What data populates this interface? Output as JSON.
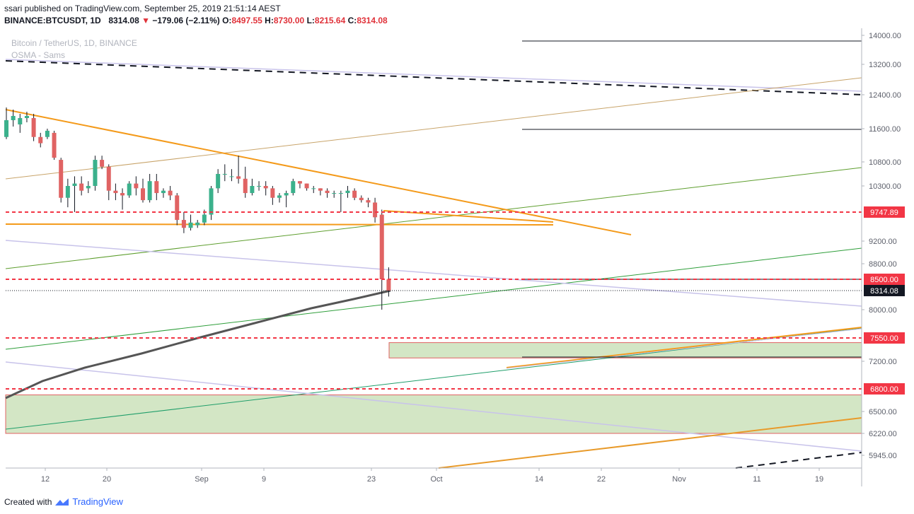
{
  "header": {
    "published_line": "ssari published on TradingView.com, September 25, 2019 21:51:14 AEST",
    "symbol": "BINANCE:BTCUSDT, 1D",
    "last": "8314.08",
    "change": "−179.06 (−2.11%)",
    "o_label": "O:",
    "o_value": "8497.55",
    "h_label": "H:",
    "h_value": "8730.00",
    "l_label": "L:",
    "l_value": "8215.64",
    "c_label": "C:",
    "c_value": "8314.08"
  },
  "watermark": {
    "title": "Bitcoin / TetherUS, 1D, BINANCE",
    "indicator": "OSMA - Sams"
  },
  "footer": {
    "created_with": "Created with",
    "brand": "TradingView"
  },
  "colors": {
    "up": "#3bb18c",
    "down": "#e06363",
    "orange": "#f49a1a",
    "red_dashed": "#f23645",
    "zone_fill": "#d3e6c5",
    "ma": "#555555"
  },
  "chart_data": {
    "type": "candlestick",
    "symbol": "BTCUSDT",
    "timeframe": "1D",
    "y_ticks": [
      "14000.00",
      "13200.00",
      "12400.00",
      "11600.00",
      "10800.00",
      "10300.00",
      "9200.00",
      "8800.00",
      "8000.00",
      "7200.00",
      "6500.00",
      "6220.00",
      "5945.00"
    ],
    "x_ticks": [
      "12",
      "20",
      "Sep",
      "9",
      "23",
      "Oct",
      "14",
      "22",
      "Nov",
      "11",
      "19"
    ],
    "price_labels": [
      {
        "value": 9747.89,
        "text": "9747.89",
        "style": "red"
      },
      {
        "value": 8500.0,
        "text": "8500.00",
        "style": "red"
      },
      {
        "value": 8314.08,
        "text": "8314.08",
        "style": "black"
      },
      {
        "value": 7550.0,
        "text": "7550.00",
        "style": "red"
      },
      {
        "value": 6800.0,
        "text": "6800.00",
        "style": "red"
      }
    ],
    "horizontal_lines": [
      {
        "value": 13850,
        "style": "black"
      },
      {
        "value": 11580,
        "style": "black"
      },
      {
        "value": 9747.89,
        "style": "red-dashed"
      },
      {
        "value": 8500,
        "style": "red-dashed"
      },
      {
        "value": 8314.08,
        "style": "black-dotted"
      },
      {
        "value": 7550,
        "style": "red-dashed"
      },
      {
        "value": 6800,
        "style": "red-dashed"
      },
      {
        "value": 9550,
        "style": "orange"
      }
    ],
    "zones": [
      {
        "from": 7250,
        "to": 7480
      },
      {
        "from": 6220,
        "to": 6720
      }
    ],
    "candles": [
      {
        "o": 11400,
        "h": 12100,
        "l": 11350,
        "c": 11800
      },
      {
        "o": 11800,
        "h": 12050,
        "l": 11650,
        "c": 11900
      },
      {
        "o": 11700,
        "h": 11950,
        "l": 11500,
        "c": 11850
      },
      {
        "o": 11850,
        "h": 12000,
        "l": 11750,
        "c": 11900
      },
      {
        "o": 11850,
        "h": 11950,
        "l": 11300,
        "c": 11400
      },
      {
        "o": 11400,
        "h": 11500,
        "l": 11150,
        "c": 11250
      },
      {
        "o": 11400,
        "h": 11600,
        "l": 11350,
        "c": 11550
      },
      {
        "o": 11500,
        "h": 11550,
        "l": 10850,
        "c": 10900
      },
      {
        "o": 10850,
        "h": 10900,
        "l": 9950,
        "c": 10050
      },
      {
        "o": 10050,
        "h": 10450,
        "l": 9850,
        "c": 10300
      },
      {
        "o": 10300,
        "h": 10500,
        "l": 9750,
        "c": 10350
      },
      {
        "o": 10350,
        "h": 10500,
        "l": 10100,
        "c": 10200
      },
      {
        "o": 10250,
        "h": 10400,
        "l": 10150,
        "c": 10300
      },
      {
        "o": 10300,
        "h": 10950,
        "l": 10200,
        "c": 10850
      },
      {
        "o": 10850,
        "h": 10950,
        "l": 10650,
        "c": 10700
      },
      {
        "o": 10700,
        "h": 10750,
        "l": 10000,
        "c": 10200
      },
      {
        "o": 10200,
        "h": 10350,
        "l": 10000,
        "c": 10150
      },
      {
        "o": 10150,
        "h": 10250,
        "l": 9800,
        "c": 10100
      },
      {
        "o": 10100,
        "h": 10400,
        "l": 10050,
        "c": 10350
      },
      {
        "o": 10350,
        "h": 10500,
        "l": 10100,
        "c": 10250
      },
      {
        "o": 10250,
        "h": 10450,
        "l": 9950,
        "c": 10000
      },
      {
        "o": 10000,
        "h": 10550,
        "l": 9950,
        "c": 10400
      },
      {
        "o": 10400,
        "h": 10550,
        "l": 10000,
        "c": 10150
      },
      {
        "o": 10150,
        "h": 10250,
        "l": 10050,
        "c": 10200
      },
      {
        "o": 10200,
        "h": 10300,
        "l": 10000,
        "c": 10100
      },
      {
        "o": 10100,
        "h": 10150,
        "l": 9500,
        "c": 9600
      },
      {
        "o": 9600,
        "h": 9750,
        "l": 9350,
        "c": 9450
      },
      {
        "o": 9450,
        "h": 9700,
        "l": 9400,
        "c": 9550
      },
      {
        "o": 9500,
        "h": 9600,
        "l": 9450,
        "c": 9550
      },
      {
        "o": 9550,
        "h": 9800,
        "l": 9500,
        "c": 9700
      },
      {
        "o": 9700,
        "h": 10300,
        "l": 9600,
        "c": 10250
      },
      {
        "o": 10250,
        "h": 10650,
        "l": 10150,
        "c": 10550
      },
      {
        "o": 10550,
        "h": 10750,
        "l": 10400,
        "c": 10550
      },
      {
        "o": 10500,
        "h": 10650,
        "l": 10400,
        "c": 10500
      },
      {
        "o": 10500,
        "h": 10950,
        "l": 10350,
        "c": 10450
      },
      {
        "o": 10450,
        "h": 10700,
        "l": 10050,
        "c": 10150
      },
      {
        "o": 10150,
        "h": 10450,
        "l": 10100,
        "c": 10300
      },
      {
        "o": 10300,
        "h": 10400,
        "l": 10200,
        "c": 10300
      },
      {
        "o": 10300,
        "h": 10400,
        "l": 10100,
        "c": 10250
      },
      {
        "o": 10250,
        "h": 10300,
        "l": 9900,
        "c": 10050
      },
      {
        "o": 10050,
        "h": 10150,
        "l": 9950,
        "c": 10100
      },
      {
        "o": 10100,
        "h": 10200,
        "l": 9850,
        "c": 10150
      },
      {
        "o": 10150,
        "h": 10450,
        "l": 10100,
        "c": 10400
      },
      {
        "o": 10400,
        "h": 10400,
        "l": 10250,
        "c": 10350
      },
      {
        "o": 10350,
        "h": 10350,
        "l": 10200,
        "c": 10250
      },
      {
        "o": 10250,
        "h": 10300,
        "l": 10150,
        "c": 10250
      },
      {
        "o": 10250,
        "h": 10250,
        "l": 10100,
        "c": 10200
      },
      {
        "o": 10200,
        "h": 10250,
        "l": 10050,
        "c": 10150
      },
      {
        "o": 10150,
        "h": 10200,
        "l": 10050,
        "c": 10150
      },
      {
        "o": 10150,
        "h": 10200,
        "l": 9750,
        "c": 10150
      },
      {
        "o": 10150,
        "h": 10300,
        "l": 10050,
        "c": 10200
      },
      {
        "o": 10200,
        "h": 10250,
        "l": 10000,
        "c": 10050
      },
      {
        "o": 10050,
        "h": 10100,
        "l": 9950,
        "c": 10000
      },
      {
        "o": 10000,
        "h": 10050,
        "l": 9850,
        "c": 9950
      },
      {
        "o": 9950,
        "h": 10050,
        "l": 9550,
        "c": 9650
      },
      {
        "o": 9700,
        "h": 9800,
        "l": 8000,
        "c": 8500
      },
      {
        "o": 8497.55,
        "h": 8730,
        "l": 8215.64,
        "c": 8314.08
      }
    ]
  }
}
